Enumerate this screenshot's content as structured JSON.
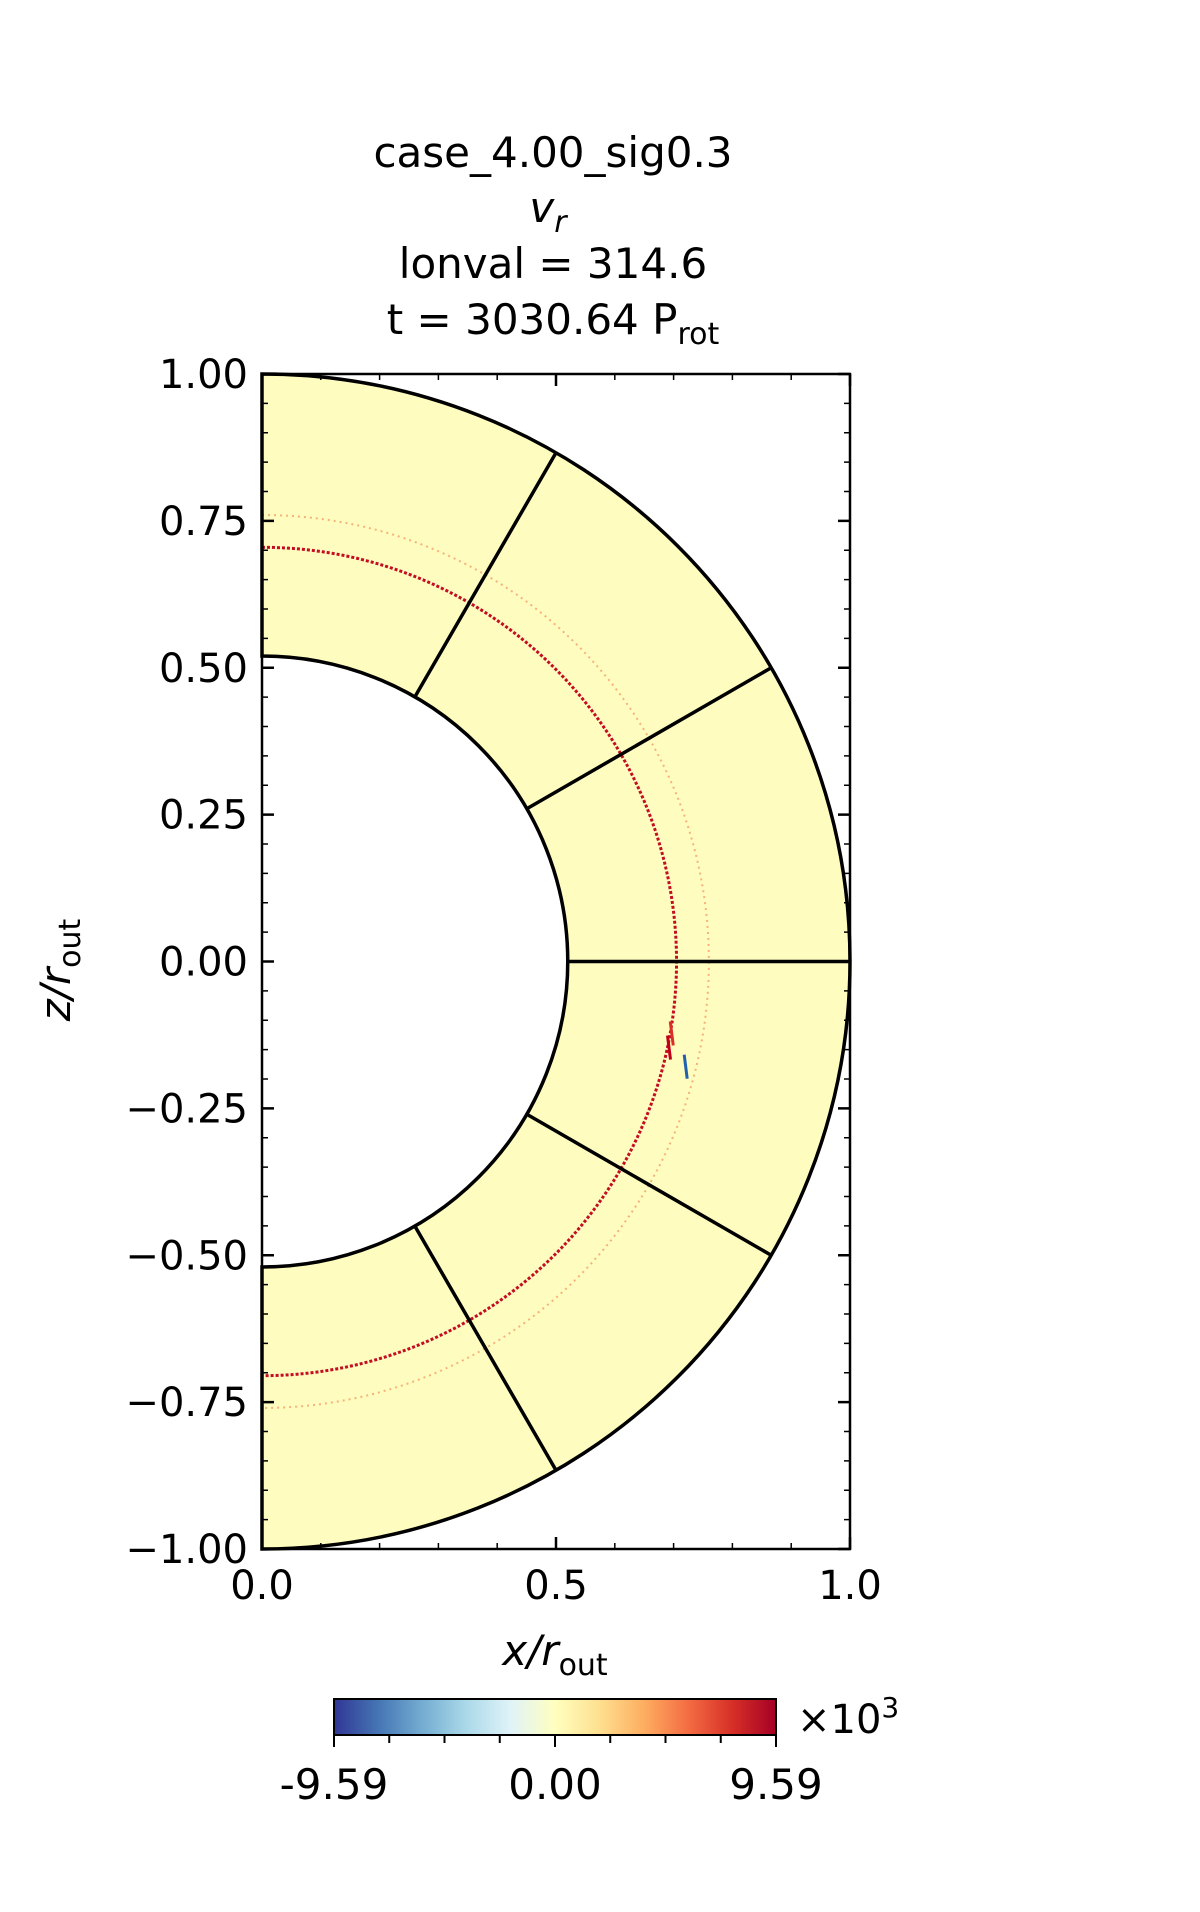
{
  "chart_data": {
    "type": "heatmap",
    "title_lines": [
      "case_4.00_sig0.3",
      "v",
      "lonval = 314.6",
      "t = 3030.64 P"
    ],
    "title_var_sub": "r",
    "title_time_sub": "rot",
    "xlabel": "x/r",
    "xlabel_sub": "out",
    "ylabel": "z/r",
    "ylabel_sub": "out",
    "xlim": [
      0.0,
      1.0
    ],
    "ylim": [
      -1.0,
      1.0
    ],
    "x_ticks": [
      0.0,
      0.5,
      1.0
    ],
    "x_tick_labels": [
      "0.0",
      "0.5",
      "1.0"
    ],
    "y_ticks": [
      1.0,
      0.75,
      0.5,
      0.25,
      0.0,
      -0.25,
      -0.5,
      -0.75,
      -1.0
    ],
    "y_tick_labels": [
      "1.00",
      "0.75",
      "0.50",
      "0.25",
      "0.00",
      "−0.25",
      "−0.50",
      "−0.75",
      "−1.00"
    ],
    "domain": {
      "r_inner": 0.52,
      "r_outer": 1.0,
      "theta_range_deg": [
        0,
        180
      ],
      "panel_boundaries_deg": [
        30,
        60,
        90,
        120,
        150
      ]
    },
    "features": [
      {
        "kind": "ring",
        "r": 0.705,
        "intensity": "strong"
      },
      {
        "kind": "ring",
        "r": 0.76,
        "intensity": "faint"
      }
    ],
    "colorbar": {
      "min": -9.59,
      "max": 9.59,
      "tick_labels": [
        "-9.59",
        "0.00",
        "9.59"
      ],
      "multiplier": "×10",
      "multiplier_exp": "3",
      "colormap": "RdYlBu_r",
      "stops": [
        "#313695",
        "#4575b4",
        "#74add1",
        "#abd9e9",
        "#e0f3f8",
        "#ffffbf",
        "#fee090",
        "#fdae61",
        "#f46d43",
        "#d73027",
        "#a50026"
      ]
    },
    "background_color": "#fefcbf"
  }
}
